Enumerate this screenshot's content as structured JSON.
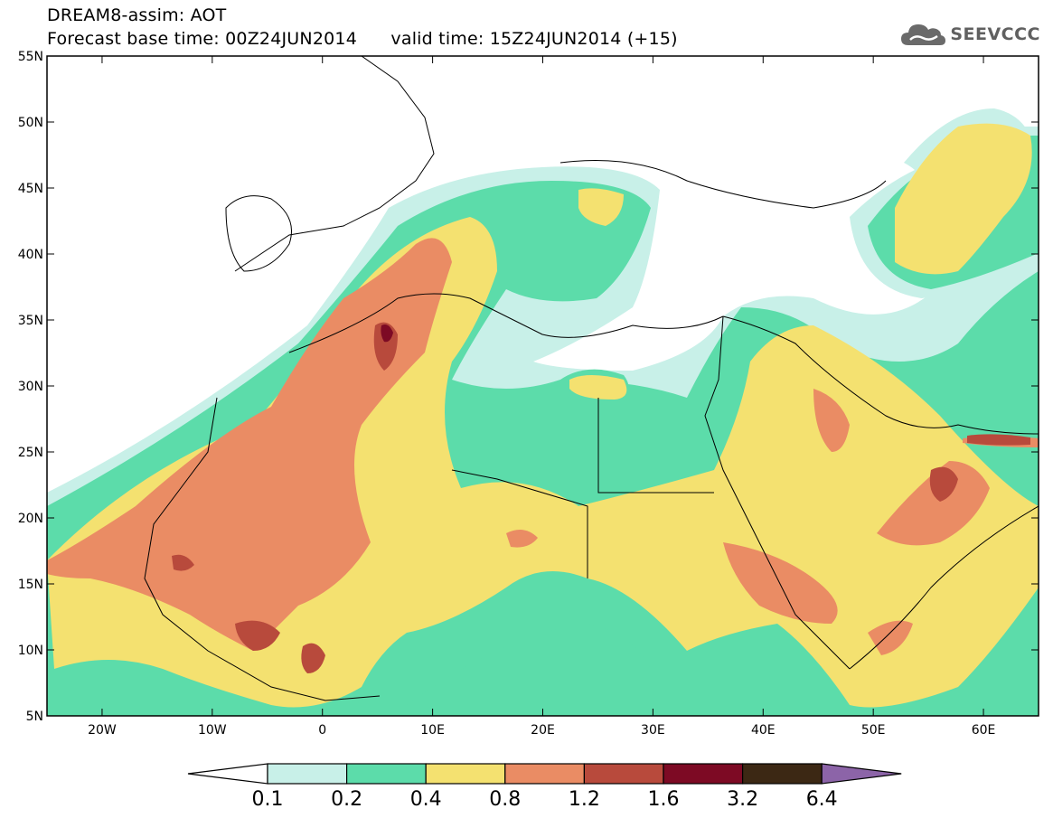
{
  "header": {
    "title_line1": "DREAM8-assim: AOT",
    "title_line2": "Forecast base time: 00Z24JUN2014      valid time: 15Z24JUN2014 (+15)"
  },
  "logo": {
    "text": "SEEVCCC",
    "icon": "cloud-icon"
  },
  "map": {
    "lon_range": [
      -25,
      65
    ],
    "lat_range": [
      5,
      55
    ],
    "lat_labels": [
      "55N",
      "50N",
      "45N",
      "40N",
      "35N",
      "30N",
      "25N",
      "20N",
      "15N",
      "10N",
      "5N"
    ],
    "lon_labels": [
      "20W",
      "10W",
      "0",
      "10E",
      "20E",
      "30E",
      "40E",
      "50E",
      "60E"
    ]
  },
  "colorbar": {
    "labels": [
      "0.1",
      "0.2",
      "0.4",
      "0.8",
      "1.2",
      "1.6",
      "3.2",
      "6.4"
    ],
    "colors": [
      "#ffffff",
      "#c8f0e8",
      "#5cdcaa",
      "#f4e170",
      "#ea8c64",
      "#b84a3c",
      "#7d0a24",
      "#3c2814",
      "#8c64a8"
    ]
  }
}
